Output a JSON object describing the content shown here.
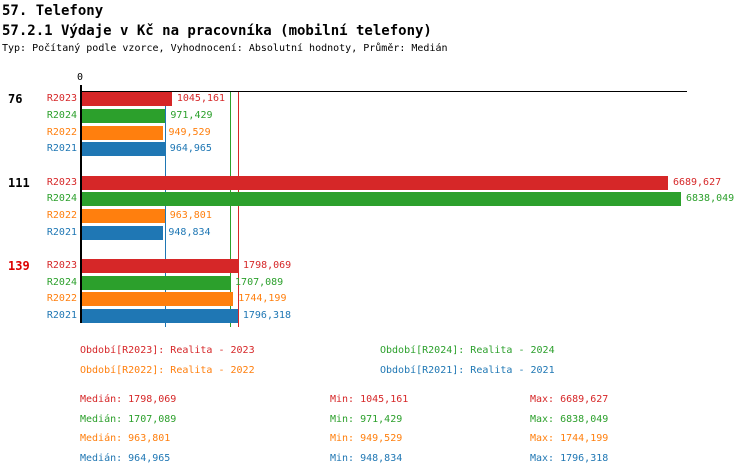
{
  "header": {
    "title": "57. Telefony",
    "subtitle": "57.2.1 Výdaje v Kč na pracovníka (mobilní telefony)",
    "meta": "Typ: Počítaný podle vzorce, Vyhodnocení: Absolutní hodnoty, Průměr: Medián"
  },
  "colors": {
    "r2023": "#d62728",
    "r2024": "#2ca02c",
    "r2022": "#ff7f0e",
    "r2021": "#1f77b4",
    "axis": "#000000",
    "highlighted_group_label": "#dd0000",
    "normal_group_label": "#000000",
    "background": "#ffffff"
  },
  "chart_data": {
    "type": "bar",
    "orientation": "horizontal",
    "value_axis": {
      "zero_label": "0",
      "scale_max": 6838.049
    },
    "series": [
      {
        "id": "R2023",
        "color": "#d62728",
        "median": 1798.069,
        "min": 1045.161,
        "max": 6689.627
      },
      {
        "id": "R2024",
        "color": "#2ca02c",
        "median": 1707.089,
        "min": 971.429,
        "max": 6838.049
      },
      {
        "id": "R2022",
        "color": "#ff7f0e",
        "median": 963.801,
        "min": 949.529,
        "max": 1744.199
      },
      {
        "id": "R2021",
        "color": "#1f77b4",
        "median": 964.965,
        "min": 948.834,
        "max": 1796.318
      }
    ],
    "groups": [
      {
        "label": "76",
        "label_color": "#000000",
        "highlighted": false,
        "values": [
          1045.161,
          971.429,
          949.529,
          964.965
        ],
        "value_labels": [
          "1045,161",
          "971,429",
          "949,529",
          "964,965"
        ]
      },
      {
        "label": "111",
        "label_color": "#000000",
        "highlighted": false,
        "values": [
          6689.627,
          6838.049,
          963.801,
          948.834
        ],
        "value_labels": [
          "6689,627",
          "6838,049",
          "963,801",
          "948,834"
        ]
      },
      {
        "label": "139",
        "label_color": "#dd0000",
        "highlighted": true,
        "values": [
          1798.069,
          1707.089,
          1744.199,
          1796.318
        ],
        "value_labels": [
          "1798,069",
          "1707,089",
          "1744,199",
          "1796,318"
        ]
      }
    ],
    "median_lines_from_series_medians": true
  },
  "legend": {
    "items": [
      {
        "text": "Období[R2023]: Realita - 2023",
        "color": "#d62728"
      },
      {
        "text": "Období[R2024]: Realita - 2024",
        "color": "#2ca02c"
      },
      {
        "text": "Období[R2022]: Realita - 2022",
        "color": "#ff7f0e"
      },
      {
        "text": "Období[R2021]: Realita - 2021",
        "color": "#1f77b4"
      }
    ]
  },
  "stats": {
    "rows": [
      {
        "color": "#d62728",
        "median": "Medián: 1798,069",
        "min": "Min: 1045,161",
        "max": "Max: 6689,627"
      },
      {
        "color": "#2ca02c",
        "median": "Medián: 1707,089",
        "min": "Min: 971,429",
        "max": "Max: 6838,049"
      },
      {
        "color": "#ff7f0e",
        "median": "Medián: 963,801",
        "min": "Min: 949,529",
        "max": "Max: 1744,199"
      },
      {
        "color": "#1f77b4",
        "median": "Medián: 964,965",
        "min": "Min: 948,834",
        "max": "Max: 1796,318"
      }
    ]
  }
}
